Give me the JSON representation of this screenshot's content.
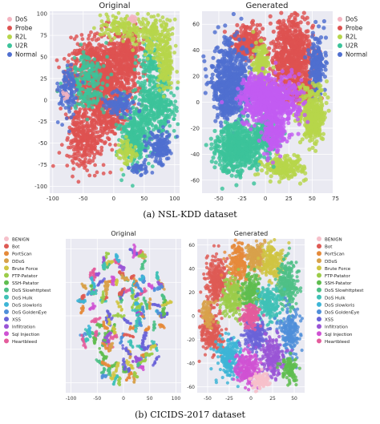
{
  "figure": {
    "caption_a": "(a) NSL-KDD dataset",
    "caption_b": "(b) CICIDS-2017 dataset"
  },
  "palette": {
    "nsl": {
      "DoS": "#f4b3bf",
      "Probe": "#de5250",
      "R2L": "#b7d64a",
      "U2R": "#3cc39a",
      "Normal": "#4f6fd0"
    },
    "generated_extra": {
      "Bridge": "#c25cf2"
    },
    "cic": {
      "BENIGN": "#f6c0ca",
      "Bot": "#de5a54",
      "PortScan": "#e58a3a",
      "DDoS": "#d8a14a",
      "Brute Force": "#d0c542",
      "FTP-Patator": "#9bcc49",
      "SSH-Patator": "#5fbd4f",
      "DoS Slowhttptest": "#4ebf86",
      "DoS Hulk": "#3fc1b6",
      "DoS slowloris": "#3db5d6",
      "DoS GoldenEye": "#4f8fd9",
      "XSS": "#6a63d8",
      "Infiltration": "#9a55d6",
      "Sql Injection": "#cf52d3",
      "Heartbleed": "#e45c9c"
    }
  },
  "chart_data": [
    {
      "type": "scatter",
      "title": "Original",
      "legend_position": "top-left",
      "legend": [
        "DoS",
        "Probe",
        "R2L",
        "U2R",
        "Normal"
      ],
      "xlim": [
        -105,
        108
      ],
      "ylim": [
        -108,
        103
      ],
      "xticks": [
        -100,
        -50,
        0,
        50,
        100
      ],
      "yticks": [
        100,
        75,
        50,
        25,
        0,
        -25,
        -50,
        -75,
        -100
      ],
      "grid": true,
      "clusters": [
        {
          "label": "Probe",
          "cx": -20,
          "cy": 30,
          "rx": 48,
          "ry": 40,
          "n": 900
        },
        {
          "label": "Probe",
          "cx": 20,
          "cy": 50,
          "rx": 22,
          "ry": 30,
          "n": 260
        },
        {
          "label": "Probe",
          "cx": -48,
          "cy": -45,
          "rx": 28,
          "ry": 35,
          "n": 320
        },
        {
          "label": "Probe",
          "cx": -10,
          "cy": -20,
          "rx": 25,
          "ry": 20,
          "n": 180
        },
        {
          "label": "U2R",
          "cx": 35,
          "cy": -45,
          "rx": 22,
          "ry": 30,
          "n": 320
        },
        {
          "label": "U2R",
          "cx": 70,
          "cy": -5,
          "rx": 28,
          "ry": 35,
          "n": 360
        },
        {
          "label": "U2R",
          "cx": -45,
          "cy": 20,
          "rx": 25,
          "ry": 30,
          "n": 200
        },
        {
          "label": "U2R",
          "cx": 60,
          "cy": 45,
          "rx": 15,
          "ry": 20,
          "n": 90
        },
        {
          "label": "R2L",
          "cx": 65,
          "cy": 75,
          "rx": 30,
          "ry": 20,
          "n": 200
        },
        {
          "label": "R2L",
          "cx": 85,
          "cy": 40,
          "rx": 12,
          "ry": 25,
          "n": 140
        },
        {
          "label": "R2L",
          "cx": 10,
          "cy": 85,
          "rx": 30,
          "ry": 12,
          "n": 110
        },
        {
          "label": "R2L",
          "cx": 20,
          "cy": -60,
          "rx": 15,
          "ry": 15,
          "n": 70
        },
        {
          "label": "Normal",
          "cx": 75,
          "cy": -55,
          "rx": 18,
          "ry": 18,
          "n": 160
        },
        {
          "label": "Normal",
          "cx": -75,
          "cy": 10,
          "rx": 15,
          "ry": 25,
          "n": 120
        },
        {
          "label": "Normal",
          "cx": 10,
          "cy": -5,
          "rx": 22,
          "ry": 12,
          "n": 120
        },
        {
          "label": "Normal",
          "cx": 40,
          "cy": -80,
          "rx": 15,
          "ry": 8,
          "n": 40
        },
        {
          "label": "DoS",
          "cx": 30,
          "cy": 95,
          "rx": 8,
          "ry": 4,
          "n": 12
        },
        {
          "label": "DoS",
          "cx": -80,
          "cy": 5,
          "rx": 5,
          "ry": 5,
          "n": 8
        }
      ]
    },
    {
      "type": "scatter",
      "title": "Generated",
      "legend_position": "top-right",
      "legend": [
        "DoS",
        "Probe",
        "R2L",
        "U2R",
        "Normal"
      ],
      "xlim": [
        -68,
        72
      ],
      "ylim": [
        -70,
        70
      ],
      "xticks": [
        -50,
        -25,
        0,
        25,
        50,
        75
      ],
      "yticks": [
        60,
        40,
        20,
        0,
        -20,
        -40,
        -60
      ],
      "grid": true,
      "clusters": [
        {
          "label": "Probe",
          "cx": 28,
          "cy": 35,
          "rx": 20,
          "ry": 28,
          "n": 700
        },
        {
          "label": "Probe",
          "cx": -20,
          "cy": 45,
          "rx": 15,
          "ry": 12,
          "n": 220
        },
        {
          "label": "Probe",
          "cx": 40,
          "cy": 10,
          "rx": 12,
          "ry": 10,
          "n": 160
        },
        {
          "label": "Normal",
          "cx": -38,
          "cy": 15,
          "rx": 18,
          "ry": 28,
          "n": 600
        },
        {
          "label": "Normal",
          "cx": 55,
          "cy": 30,
          "rx": 8,
          "ry": 22,
          "n": 180
        },
        {
          "label": "R2L",
          "cx": 50,
          "cy": -10,
          "rx": 12,
          "ry": 20,
          "n": 350
        },
        {
          "label": "R2L",
          "cx": 20,
          "cy": -50,
          "rx": 18,
          "ry": 8,
          "n": 200
        },
        {
          "label": "R2L",
          "cx": -5,
          "cy": 30,
          "rx": 8,
          "ry": 14,
          "n": 140
        },
        {
          "label": "U2R",
          "cx": -30,
          "cy": -35,
          "rx": 22,
          "ry": 18,
          "n": 550
        },
        {
          "label": "U2R",
          "cx": 0,
          "cy": -25,
          "rx": 12,
          "ry": 15,
          "n": 200
        },
        {
          "label": "Bridge",
          "cx": 5,
          "cy": 0,
          "rx": 28,
          "ry": 18,
          "n": 650
        },
        {
          "label": "Bridge",
          "cx": 10,
          "cy": -25,
          "rx": 10,
          "ry": 15,
          "n": 160
        },
        {
          "label": "Bridge",
          "cx": -10,
          "cy": 10,
          "rx": 15,
          "ry": 10,
          "n": 150
        }
      ]
    },
    {
      "type": "scatter",
      "title": "Original",
      "legend_position": "outside-left",
      "legend": [
        "BENIGN",
        "Bot",
        "PortScan",
        "DDoS",
        "Brute Force",
        "FTP-Patator",
        "SSH-Patator",
        "DoS Slowhttptest",
        "DoS Hulk",
        "DoS slowloris",
        "DoS GoldenEye",
        "XSS",
        "Infiltration",
        "Sql Injection",
        "Heartbleed"
      ],
      "xlim": [
        -110,
        110
      ],
      "ylim": [
        -115,
        115
      ],
      "xticks": [
        -100,
        -50,
        0,
        50,
        100
      ],
      "yticks": [],
      "grid": true,
      "style": "segments",
      "clusters": []
    },
    {
      "type": "scatter",
      "title": "Generated",
      "legend_position": "outside-right",
      "legend": [
        "BENIGN",
        "Bot",
        "PortScan",
        "DDoS",
        "Brute Force",
        "FTP-Patator",
        "SSH-Patator",
        "DoS Slowhttptest",
        "DoS Hulk",
        "DoS slowloris",
        "DoS GoldenEye",
        "XSS",
        "Infiltration",
        "Sql Injection",
        "Heartbleed"
      ],
      "xlim": [
        -62,
        62
      ],
      "ylim": [
        -65,
        65
      ],
      "xticks": [
        -50,
        -25,
        0,
        25,
        50
      ],
      "yticks": [
        60,
        40,
        20,
        0,
        -20,
        -40,
        -60
      ],
      "grid": true,
      "style": "blobs",
      "clusters": [
        {
          "label": "Bot",
          "cx": -40,
          "cy": 30,
          "rx": 12,
          "ry": 18,
          "n": 260
        },
        {
          "label": "Bot",
          "cx": -45,
          "cy": -15,
          "rx": 12,
          "ry": 15,
          "n": 200
        },
        {
          "label": "PortScan",
          "cx": -15,
          "cy": 45,
          "rx": 10,
          "ry": 15,
          "n": 200
        },
        {
          "label": "DDoS",
          "cx": 5,
          "cy": 50,
          "rx": 10,
          "ry": 12,
          "n": 180
        },
        {
          "label": "Brute Force",
          "cx": 25,
          "cy": 45,
          "rx": 12,
          "ry": 15,
          "n": 200
        },
        {
          "label": "FTP-Patator",
          "cx": -20,
          "cy": 15,
          "rx": 12,
          "ry": 15,
          "n": 200
        },
        {
          "label": "SSH-Patator",
          "cx": 0,
          "cy": 20,
          "rx": 10,
          "ry": 14,
          "n": 180
        },
        {
          "label": "DoS Slowhttptest",
          "cx": 42,
          "cy": 25,
          "rx": 10,
          "ry": 20,
          "n": 220
        },
        {
          "label": "DoS Hulk",
          "cx": 20,
          "cy": 10,
          "rx": 12,
          "ry": 14,
          "n": 200
        },
        {
          "label": "DoS slowloris",
          "cx": -25,
          "cy": -35,
          "rx": 12,
          "ry": 16,
          "n": 220
        },
        {
          "label": "DoS GoldenEye",
          "cx": 45,
          "cy": -15,
          "rx": 10,
          "ry": 18,
          "n": 200
        },
        {
          "label": "XSS",
          "cx": 5,
          "cy": -15,
          "rx": 12,
          "ry": 12,
          "n": 180
        },
        {
          "label": "Infiltration",
          "cx": 25,
          "cy": -35,
          "rx": 12,
          "ry": 16,
          "n": 200
        },
        {
          "label": "Sql Injection",
          "cx": -5,
          "cy": -45,
          "rx": 12,
          "ry": 14,
          "n": 200
        },
        {
          "label": "Heartbleed",
          "cx": 0,
          "cy": 0,
          "rx": 10,
          "ry": 8,
          "n": 140
        },
        {
          "label": "BENIGN",
          "cx": 10,
          "cy": -55,
          "rx": 10,
          "ry": 6,
          "n": 100
        },
        {
          "label": "DDoS",
          "cx": -50,
          "cy": 0,
          "rx": 6,
          "ry": 10,
          "n": 80
        },
        {
          "label": "SSH-Patator",
          "cx": 45,
          "cy": -45,
          "rx": 8,
          "ry": 10,
          "n": 100
        }
      ]
    }
  ]
}
